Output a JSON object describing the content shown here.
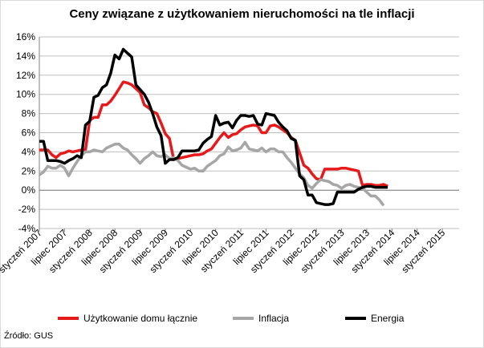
{
  "chart_data": {
    "type": "line",
    "title": "Ceny związane z użytkowaniem nieruchomości na tle inflacji",
    "xlabel": "",
    "ylabel": "",
    "ylim": [
      -4,
      16
    ],
    "y_ticks": [
      "16%",
      "14%",
      "12%",
      "10%",
      "8%",
      "6%",
      "4%",
      "2%",
      "0%",
      "-2%",
      "-4%"
    ],
    "y_tick_values": [
      16,
      14,
      12,
      10,
      8,
      6,
      4,
      2,
      0,
      -2,
      -4
    ],
    "x_ticks": [
      "styczeń 2007",
      "lipiec 2007",
      "styczeń 2008",
      "lipiec 2008",
      "styczeń 2009",
      "lipiec 2009",
      "styczeń 2010",
      "lipiec 2010",
      "styczeń 2011",
      "lipiec 2011",
      "styczeń 2012",
      "lipiec 2012",
      "styczeń 2013",
      "lipiec 2013",
      "styczeń 2014",
      "lipiec 2014",
      "styczeń 2015"
    ],
    "x_tick_months": [
      0,
      6,
      12,
      18,
      24,
      30,
      36,
      42,
      48,
      54,
      60,
      66,
      72,
      78,
      84,
      90,
      96
    ],
    "x_range_months": [
      0,
      100
    ],
    "grid": true,
    "legend": "bottom",
    "series": [
      {
        "name": "Użytkowanie domu łącznie",
        "color": "#e8191b",
        "values": [
          4.2,
          4.2,
          4.2,
          3.7,
          3.4,
          3.8,
          3.9,
          4.1,
          4.0,
          4.1,
          4.2,
          4.2,
          7.3,
          7.6,
          7.6,
          8.9,
          8.9,
          9.3,
          9.9,
          10.6,
          11.3,
          11.2,
          11.0,
          10.6,
          10.2,
          8.9,
          8.6,
          8.2,
          8.0,
          7.0,
          5.9,
          5.4,
          3.2,
          3.3,
          3.4,
          3.5,
          3.6,
          3.7,
          3.7,
          3.8,
          4.1,
          4.3,
          5.5,
          6.0,
          5.5,
          5.8,
          5.9,
          6.3,
          6.6,
          6.7,
          6.8,
          6.7,
          6.0,
          6.0,
          6.7,
          6.8,
          6.6,
          6.3,
          6.0,
          5.5,
          5.2,
          2.6,
          2.3,
          1.7,
          1.2,
          1.1,
          2.2,
          2.2,
          2.2,
          2.2,
          2.3,
          2.3,
          2.2,
          2.1,
          2.0,
          0.5,
          0.6,
          0.6,
          0.5,
          0.5,
          0.6,
          0.4
        ],
        "x_months": [
          0,
          1,
          2,
          3,
          4,
          5,
          6,
          7,
          8,
          9,
          10,
          11,
          12,
          13,
          14,
          15,
          16,
          17,
          18,
          19,
          20,
          21,
          22,
          23,
          24,
          25,
          26,
          27,
          28,
          29,
          30,
          31,
          32,
          33,
          34,
          35,
          36,
          37,
          38,
          39,
          40,
          41,
          43,
          44,
          45,
          46,
          47,
          48,
          49,
          50,
          51,
          52,
          53,
          54,
          55,
          56,
          57,
          58,
          59,
          60,
          61,
          63,
          64,
          65,
          66,
          67,
          68,
          69,
          70,
          71,
          72,
          73,
          74,
          75,
          76,
          77,
          78,
          79,
          80,
          81,
          82,
          83
        ]
      },
      {
        "name": "Inflacja",
        "color": "#a6a6a6",
        "values": [
          1.6,
          1.9,
          2.5,
          2.3,
          2.3,
          2.6,
          2.3,
          1.5,
          2.3,
          3.0,
          3.6,
          4.0,
          4.0,
          4.2,
          4.1,
          4.0,
          4.4,
          4.6,
          4.8,
          4.8,
          4.4,
          4.2,
          3.7,
          3.3,
          2.8,
          3.3,
          3.6,
          4.0,
          3.6,
          3.5,
          3.7,
          3.3,
          3.4,
          3.1,
          2.6,
          2.4,
          2.2,
          2.3,
          2.0,
          2.0,
          2.5,
          2.8,
          3.1,
          3.6,
          3.8,
          4.5,
          4.1,
          4.2,
          4.4,
          5.0,
          4.3,
          4.2,
          4.1,
          4.4,
          4.0,
          4.3,
          4.3,
          4.0,
          4.0,
          3.4,
          2.9,
          2.3,
          1.7,
          1.3,
          0.5,
          0.2,
          0.7,
          1.1,
          1.0,
          0.9,
          0.6,
          0.5,
          0.2,
          0.5,
          0.6,
          0.4,
          0.3,
          0.2,
          -0.2,
          -0.6,
          -0.6,
          -1.0,
          -1.6
        ],
        "x_months": [
          0,
          1,
          2,
          3,
          4,
          5,
          6,
          7,
          8,
          9,
          10,
          11,
          12,
          13,
          14,
          15,
          16,
          17,
          18,
          19,
          20,
          21,
          22,
          23,
          24,
          25,
          26,
          27,
          28,
          29,
          30,
          31,
          32,
          33,
          34,
          35,
          36,
          37,
          38,
          39,
          40,
          41,
          42,
          43,
          44,
          45,
          46,
          47,
          48,
          49,
          50,
          51,
          52,
          53,
          54,
          55,
          56,
          57,
          58,
          59,
          60,
          61,
          62,
          63,
          64,
          65,
          66,
          67,
          68,
          69,
          70,
          71,
          72,
          73,
          74,
          75,
          76,
          77,
          78,
          79,
          80,
          81,
          82
        ]
      },
      {
        "name": "Energia",
        "color": "#000000",
        "values": [
          5.1,
          5.1,
          3.1,
          3.1,
          3.1,
          3.0,
          2.8,
          3.1,
          3.3,
          3.6,
          3.4,
          6.8,
          7.2,
          9.7,
          9.9,
          10.7,
          11.0,
          12.2,
          14.1,
          13.7,
          14.7,
          14.3,
          13.9,
          11.0,
          10.5,
          10.0,
          9.2,
          8.0,
          6.6,
          5.7,
          2.8,
          3.2,
          3.2,
          3.4,
          4.1,
          4.1,
          4.1,
          4.1,
          4.2,
          4.9,
          5.3,
          5.6,
          7.8,
          6.8,
          7.0,
          7.1,
          6.5,
          7.3,
          7.8,
          7.8,
          7.7,
          7.8,
          6.9,
          6.8,
          8.0,
          7.9,
          7.8,
          7.1,
          6.6,
          6.2,
          5.4,
          5.2,
          1.5,
          1.1,
          -0.5,
          -0.5,
          -1.3,
          -1.4,
          -1.5,
          -1.5,
          -1.4,
          -0.2,
          -0.2,
          -0.2,
          -0.2,
          -0.2,
          0.1,
          0.3,
          0.4,
          0.4,
          0.3,
          0.3,
          0.3,
          0.3
        ],
        "x_months": [
          0,
          1,
          2,
          3,
          4,
          5,
          6,
          7,
          8,
          9,
          10,
          11,
          12,
          13,
          14,
          15,
          16,
          17,
          18,
          19,
          20,
          21,
          22,
          23,
          24,
          25,
          26,
          27,
          28,
          29,
          30,
          31,
          32,
          33,
          34,
          35,
          36,
          37,
          38,
          39,
          40,
          41,
          42,
          43,
          44,
          45,
          46,
          47,
          48,
          49,
          50,
          51,
          52,
          53,
          54,
          55,
          56,
          57,
          58,
          59,
          60,
          61,
          62,
          63,
          64,
          65,
          66,
          67,
          68,
          69,
          70,
          71,
          72,
          73,
          74,
          75,
          76,
          77,
          78,
          79,
          80,
          81,
          82,
          83
        ]
      }
    ]
  },
  "legend": {
    "items": [
      {
        "label": "Użytkowanie domu łącznie",
        "color": "#e8191b"
      },
      {
        "label": "Inflacja",
        "color": "#a6a6a6"
      },
      {
        "label": "Energia",
        "color": "#000000"
      }
    ]
  },
  "source": "Źródło: GUS"
}
